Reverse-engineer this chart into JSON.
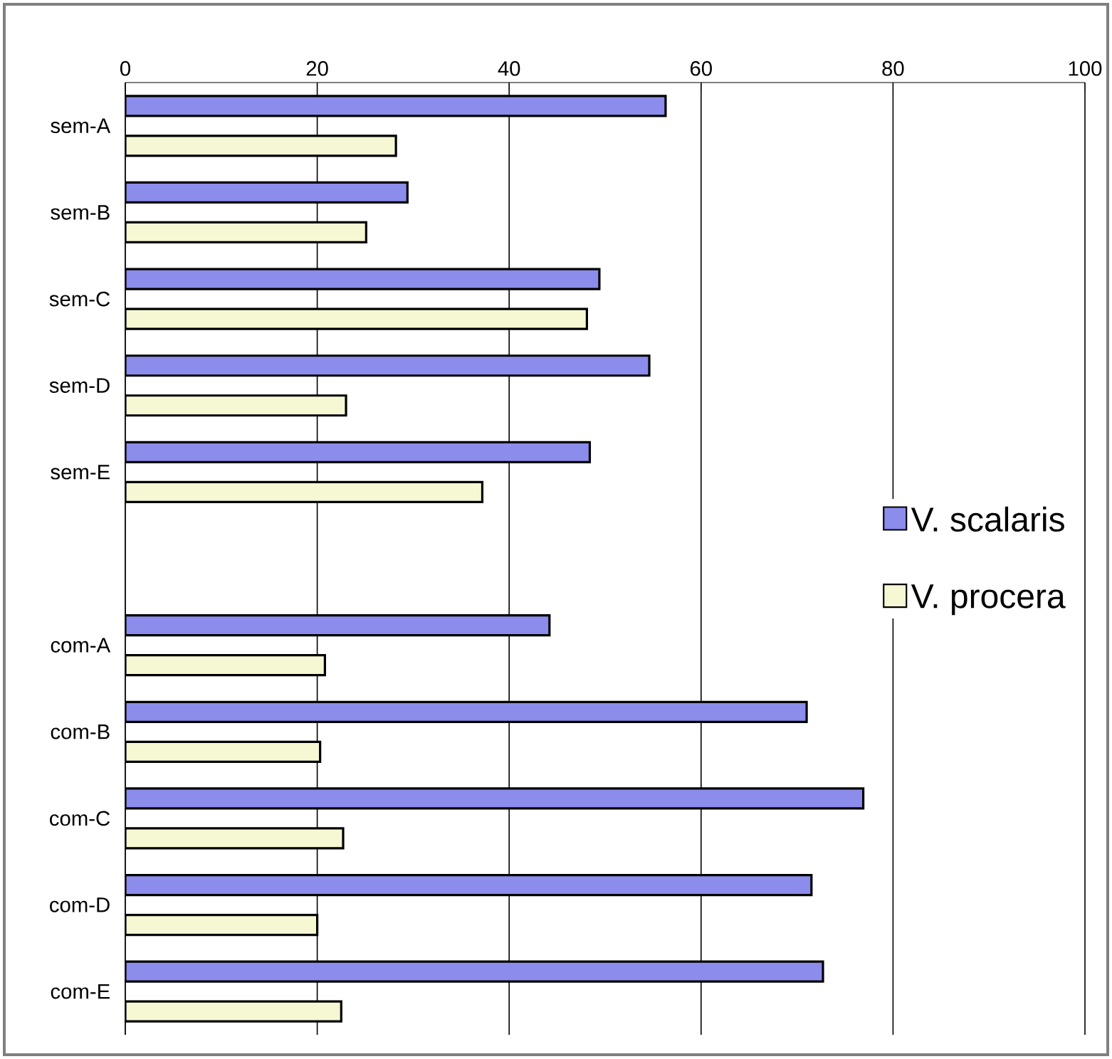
{
  "chart_data": {
    "type": "bar",
    "orientation": "horizontal",
    "categories": [
      "sem-A",
      "sem-B",
      "sem-C",
      "sem-D",
      "sem-E",
      null,
      "com-A",
      "com-B",
      "com-C",
      "com-D",
      "com-E"
    ],
    "xlim": [
      0,
      100
    ],
    "xticks": [
      0,
      20,
      40,
      60,
      80,
      100
    ],
    "grid": "x",
    "legend": "right",
    "series": [
      {
        "name": "V. scalaris",
        "color": "#8c8cec",
        "values": [
          56.3,
          29.4,
          49.4,
          54.6,
          48.4,
          null,
          44.2,
          71.0,
          76.9,
          71.5,
          72.7
        ]
      },
      {
        "name": "V. procera",
        "color": "#f6f8d4",
        "values": [
          28.2,
          25.1,
          48.1,
          23.0,
          37.2,
          null,
          20.8,
          20.3,
          22.7,
          20.0,
          22.5
        ]
      }
    ]
  }
}
